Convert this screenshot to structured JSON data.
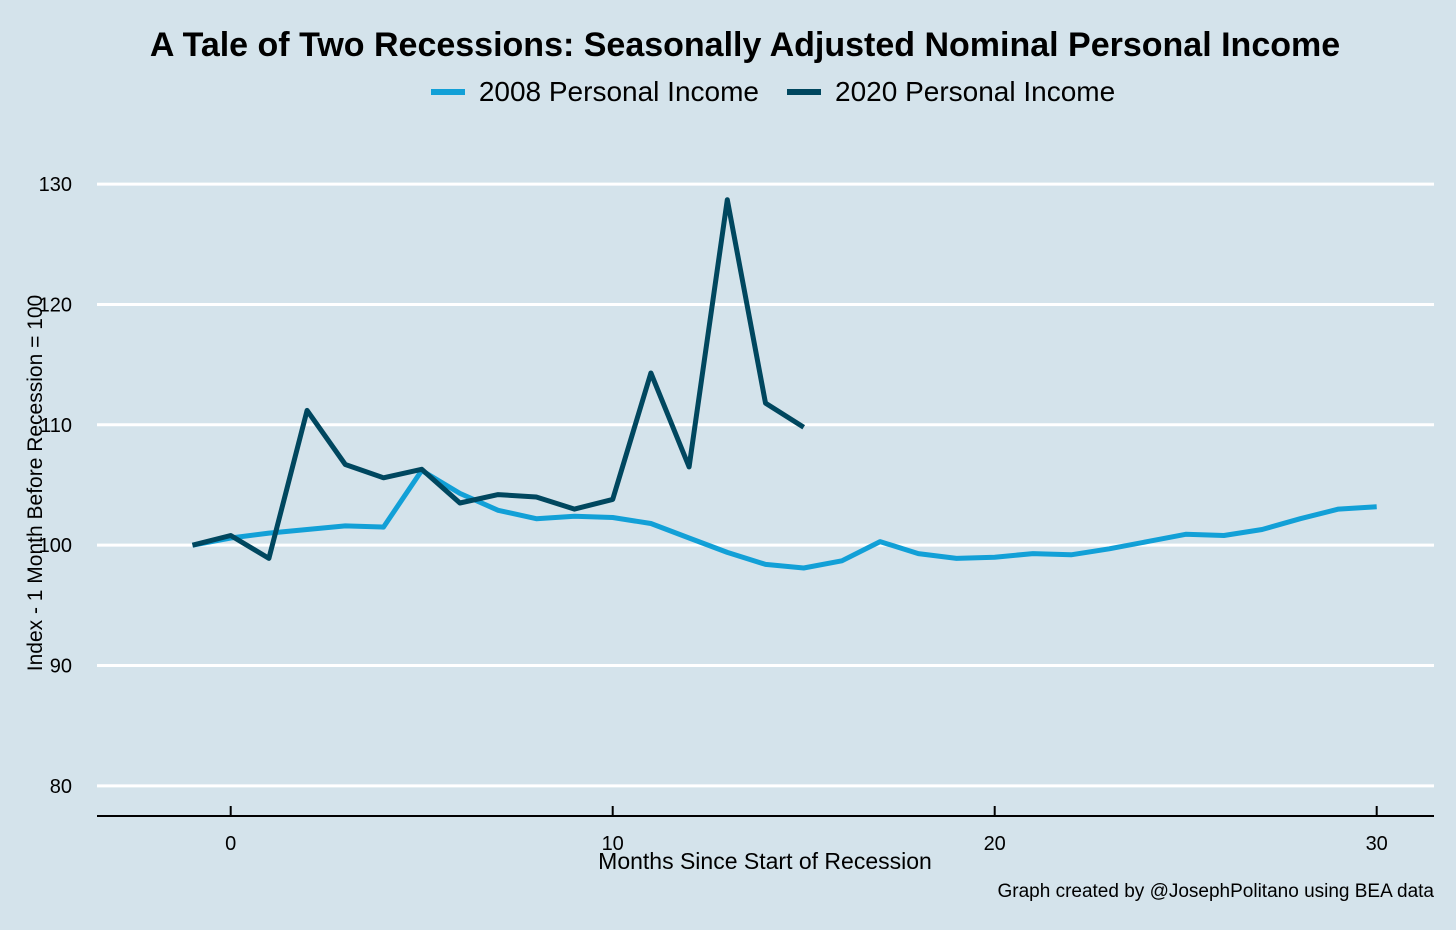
{
  "chart_data": {
    "type": "line",
    "title": "A Tale of Two Recessions: Seasonally Adjusted Nominal Personal Income",
    "xlabel": "Months Since Start of Recession",
    "ylabel": "Index - 1 Month Before Recession = 100",
    "caption": "Graph created by @JosephPolitano using BEA data",
    "xlim": [
      -3.5,
      31.5
    ],
    "ylim": [
      77.5,
      132
    ],
    "x_ticks": [
      0,
      10,
      20,
      30
    ],
    "y_ticks": [
      80,
      90,
      100,
      110,
      120,
      130
    ],
    "grid": "horizontal",
    "legend_position": "top",
    "series": [
      {
        "name": "2008 Personal Income",
        "color": "#12a0d7",
        "x": [
          -1,
          0,
          1,
          2,
          3,
          4,
          5,
          6,
          7,
          8,
          9,
          10,
          11,
          12,
          13,
          14,
          15,
          16,
          17,
          18,
          19,
          20,
          21,
          22,
          23,
          24,
          25,
          26,
          27,
          28,
          29,
          30
        ],
        "values": [
          100,
          100.6,
          101,
          101.3,
          101.6,
          101.5,
          106.2,
          104.3,
          102.9,
          102.2,
          102.4,
          102.3,
          101.8,
          100.6,
          99.4,
          98.4,
          98.1,
          98.7,
          100.3,
          99.3,
          98.9,
          99.0,
          99.3,
          99.2,
          99.7,
          100.3,
          100.9,
          100.8,
          101.3,
          102.2,
          103.0,
          103.2
        ]
      },
      {
        "name": "2020 Personal Income",
        "color": "#00475f",
        "x": [
          -1,
          0,
          1,
          2,
          3,
          4,
          5,
          6,
          7,
          8,
          9,
          10,
          11,
          12,
          13,
          14,
          15
        ],
        "values": [
          100,
          100.8,
          98.9,
          111.2,
          106.7,
          105.6,
          106.3,
          103.5,
          104.2,
          104.0,
          103.0,
          103.8,
          114.3,
          106.5,
          128.7,
          111.8,
          109.8
        ]
      }
    ]
  }
}
